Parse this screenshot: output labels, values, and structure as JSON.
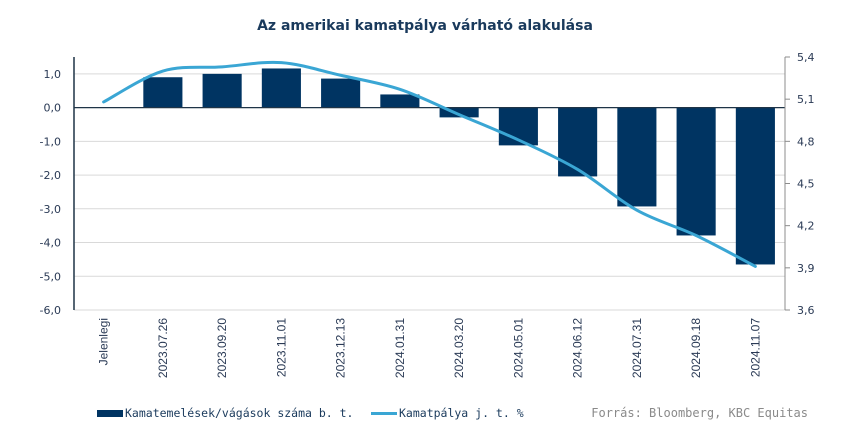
{
  "chart_data": {
    "type": "bar+line",
    "title": "Az amerikai kamatpálya várható alakulása",
    "categories": [
      "Jelenlegi",
      "2023.07.26",
      "2023.09.20",
      "2023.11.01",
      "2023.12.13",
      "2024.01.31",
      "2024.03.20",
      "2024.05.01",
      "2024.06.12",
      "2024.07.31",
      "2024.09.18",
      "2024.11.07"
    ],
    "series": [
      {
        "name": "Kamatemelések/vágások száma b. t.",
        "type": "bar",
        "axis": "left",
        "color": "#003462",
        "values": [
          null,
          0.9,
          1.0,
          1.16,
          0.86,
          0.39,
          -0.29,
          -1.12,
          -2.04,
          -2.93,
          -3.79,
          -4.65
        ]
      },
      {
        "name": "Kamatpálya j. t. %",
        "type": "line",
        "axis": "right",
        "color": "#3aa6d4",
        "values": [
          5.08,
          5.3,
          5.33,
          5.36,
          5.27,
          5.17,
          4.99,
          4.81,
          4.6,
          4.31,
          4.13,
          3.91
        ]
      }
    ],
    "left_axis": {
      "ylim": [
        -6.0,
        1.5
      ],
      "ticks": [
        1.0,
        0.0,
        -1.0,
        -2.0,
        -3.0,
        -4.0,
        -5.0,
        -6.0
      ],
      "tick_labels": [
        "1,0",
        "0,0",
        "-1,0",
        "-2,0",
        "-3,0",
        "-4,0",
        "-5,0",
        "-6,0"
      ]
    },
    "right_axis": {
      "ylim": [
        3.6,
        5.4
      ],
      "ticks": [
        5.4,
        5.1,
        4.8,
        4.5,
        4.2,
        3.9,
        3.6
      ],
      "tick_labels": [
        "5,4",
        "5,1",
        "4,8",
        "4,5",
        "4,2",
        "3,9",
        "3,6"
      ]
    },
    "grid": true,
    "legend": {
      "placement": "bottom-left",
      "entries": [
        "Kamatemelések/vágások száma b. t.",
        "Kamatpálya j. t. %"
      ]
    },
    "source": "Forrás: Bloomberg, KBC Equitas"
  }
}
